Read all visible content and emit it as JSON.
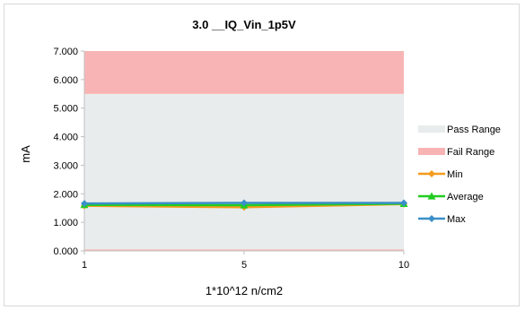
{
  "chart_data": {
    "type": "line",
    "title": "3.0 __IQ_Vin_1p5V",
    "xlabel": "1*10^12 n/cm2",
    "ylabel": "mA",
    "categories": [
      "1",
      "5",
      "10"
    ],
    "ylim": [
      0,
      7
    ],
    "yticks": [
      "0.000",
      "1.000",
      "2.000",
      "3.000",
      "4.000",
      "5.000",
      "6.000",
      "7.000"
    ],
    "ranges": [
      {
        "name": "Pass Range",
        "from": 0.05,
        "to": 5.5,
        "color": "#e8ecec"
      },
      {
        "name": "Fail Range",
        "from": 5.5,
        "to": 7.0,
        "color": "#f8b4b4"
      },
      {
        "name": "Fail Range",
        "from": 0.0,
        "to": 0.05,
        "color": "#f8b4b4"
      }
    ],
    "series": [
      {
        "name": "Min",
        "color": "#f59b1c",
        "marker": "diamond",
        "values": [
          1.58,
          1.53,
          1.64
        ]
      },
      {
        "name": "Average",
        "color": "#22cc22",
        "marker": "triangle",
        "values": [
          1.61,
          1.6,
          1.65
        ]
      },
      {
        "name": "Max",
        "color": "#3a8fc8",
        "marker": "diamond",
        "values": [
          1.66,
          1.68,
          1.68
        ]
      }
    ],
    "legend": [
      {
        "label": "Pass Range",
        "kind": "box",
        "color": "#e8ecec"
      },
      {
        "label": "Fail Range",
        "kind": "box",
        "color": "#f8b4b4"
      },
      {
        "label": "Min",
        "kind": "line",
        "color": "#f59b1c",
        "marker": "diamond"
      },
      {
        "label": "Average",
        "kind": "line",
        "color": "#22cc22",
        "marker": "triangle"
      },
      {
        "label": "Max",
        "kind": "line",
        "color": "#3a8fc8",
        "marker": "diamond"
      }
    ],
    "legend_position": "right",
    "grid": false
  }
}
